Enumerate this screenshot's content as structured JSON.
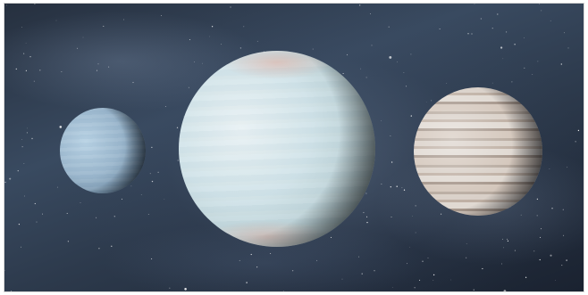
{
  "image": {
    "subject": "three-planets-against-starfield",
    "colors": {
      "space_dark": "#1a2230",
      "space_mid": "#394a60",
      "left_planet": "#9ab6cc",
      "middle_planet": "#cfe2e8",
      "right_planet": "#d4c7bc"
    },
    "planets": [
      {
        "name": "small-blue-planet"
      },
      {
        "name": "large-pale-cyan-planet"
      },
      {
        "name": "banded-tan-planet"
      }
    ]
  }
}
